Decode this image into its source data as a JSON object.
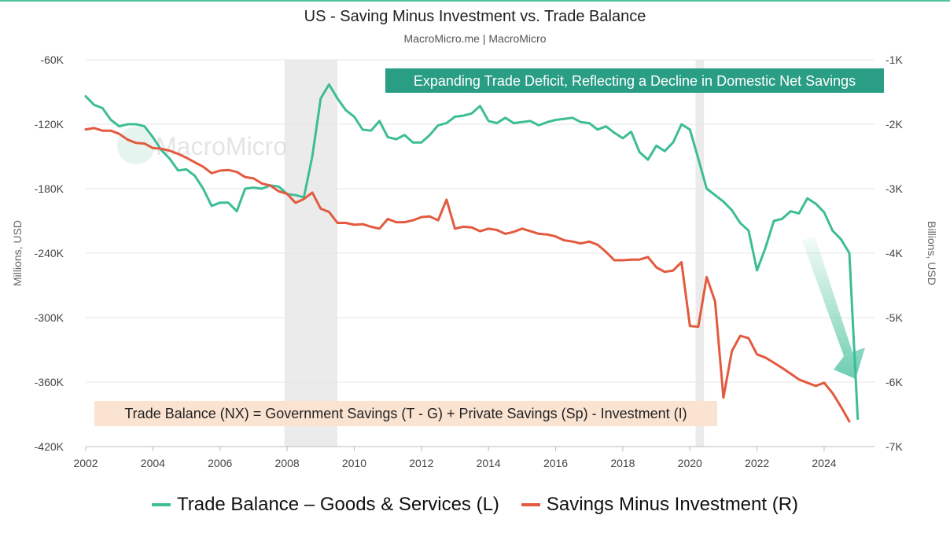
{
  "title": "US - Saving Minus Investment vs. Trade Balance",
  "subtitle": "MacroMicro.me | MacroMicro",
  "watermark": "MacroMicro",
  "colors": {
    "trade": "#3dbd96",
    "savings": "#e35a3f",
    "shade": "#ebebeb",
    "note_top_bg": "#2a9d85",
    "note_bottom_bg": "#fbe3d2"
  },
  "chart_data": {
    "type": "line",
    "x_ticks": [
      "2002",
      "2004",
      "2006",
      "2008",
      "2010",
      "2012",
      "2014",
      "2016",
      "2018",
      "2020",
      "2022",
      "2024"
    ],
    "ylabel_left": "Millions, USD",
    "ylabel_right": "Billions, USD",
    "ylim_left": [
      -420000,
      -60000
    ],
    "ylim_right": [
      -7000,
      -1000
    ],
    "left_ticks": [
      "-60K",
      "-120K",
      "-180K",
      "-240K",
      "-300K",
      "-360K",
      "-420K"
    ],
    "right_ticks": [
      "-1K",
      "-2K",
      "-3K",
      "-4K",
      "-5K",
      "-6K",
      "-7K"
    ],
    "grid": true,
    "recession_shading": [
      [
        2007.92,
        2009.5
      ],
      [
        2020.17,
        2020.42
      ]
    ],
    "legend_position": "bottom",
    "annotations": [
      {
        "text": "Expanding Trade Deficit, Reflecting a Decline in Domestic Net Savings",
        "position": "top-right"
      },
      {
        "text": "Trade Balance (NX) = Government Savings (T - G) + Private Savings (Sp) - Investment (I)",
        "position": "bottom-left"
      }
    ],
    "series": [
      {
        "name": "Trade Balance – Goods & Services (L)",
        "axis": "left",
        "x": [
          2002.0,
          2002.25,
          2002.5,
          2002.75,
          2003.0,
          2003.25,
          2003.5,
          2003.75,
          2004.0,
          2004.25,
          2004.5,
          2004.75,
          2005.0,
          2005.25,
          2005.5,
          2005.75,
          2006.0,
          2006.25,
          2006.5,
          2006.75,
          2007.0,
          2007.25,
          2007.5,
          2007.75,
          2008.0,
          2008.25,
          2008.5,
          2008.75,
          2009.0,
          2009.25,
          2009.5,
          2009.75,
          2010.0,
          2010.25,
          2010.5,
          2010.75,
          2011.0,
          2011.25,
          2011.5,
          2011.75,
          2012.0,
          2012.25,
          2012.5,
          2012.75,
          2013.0,
          2013.25,
          2013.5,
          2013.75,
          2014.0,
          2014.25,
          2014.5,
          2014.75,
          2015.0,
          2015.25,
          2015.5,
          2015.75,
          2016.0,
          2016.25,
          2016.5,
          2016.75,
          2017.0,
          2017.25,
          2017.5,
          2017.75,
          2018.0,
          2018.25,
          2018.5,
          2018.75,
          2019.0,
          2019.25,
          2019.5,
          2019.75,
          2020.0,
          2020.25,
          2020.5,
          2020.75,
          2021.0,
          2021.25,
          2021.5,
          2021.75,
          2022.0,
          2022.25,
          2022.5,
          2022.75,
          2023.0,
          2023.25,
          2023.5,
          2023.75,
          2024.0,
          2024.25,
          2024.5,
          2024.75,
          2025.0
        ],
        "values": [
          -94000,
          -102000,
          -105000,
          -116000,
          -122000,
          -120000,
          -120000,
          -122000,
          -132000,
          -144000,
          -152000,
          -163000,
          -162000,
          -168000,
          -180000,
          -196000,
          -193000,
          -193000,
          -201000,
          -180000,
          -179000,
          -180000,
          -177000,
          -178000,
          -185000,
          -186000,
          -188000,
          -150000,
          -96000,
          -83000,
          -96000,
          -107000,
          -113000,
          -125000,
          -126000,
          -117000,
          -132000,
          -134000,
          -130000,
          -137000,
          -137000,
          -130000,
          -121000,
          -119000,
          -113000,
          -112000,
          -110000,
          -103000,
          -117000,
          -119000,
          -114000,
          -119000,
          -118000,
          -117000,
          -121000,
          -118000,
          -116000,
          -115000,
          -114000,
          -118000,
          -119000,
          -125000,
          -122000,
          -128000,
          -133000,
          -127000,
          -146000,
          -153000,
          -140000,
          -145000,
          -137000,
          -120000,
          -125000,
          -152000,
          -180000,
          -186000,
          -192000,
          -200000,
          -212000,
          -219000,
          -256000,
          -235000,
          -210000,
          -208000,
          -201000,
          -203000,
          -189000,
          -194000,
          -202000,
          -219000,
          -227000,
          -240000,
          -394000
        ]
      },
      {
        "name": "Savings Minus Investment (R)",
        "axis": "right",
        "x": [
          2002.0,
          2002.25,
          2002.5,
          2002.75,
          2003.0,
          2003.25,
          2003.5,
          2003.75,
          2004.0,
          2004.25,
          2004.5,
          2004.75,
          2005.0,
          2005.25,
          2005.5,
          2005.75,
          2006.0,
          2006.25,
          2006.5,
          2006.75,
          2007.0,
          2007.25,
          2007.5,
          2007.75,
          2008.0,
          2008.25,
          2008.5,
          2008.75,
          2009.0,
          2009.25,
          2009.5,
          2009.75,
          2010.0,
          2010.25,
          2010.5,
          2010.75,
          2011.0,
          2011.25,
          2011.5,
          2011.75,
          2012.0,
          2012.25,
          2012.5,
          2012.75,
          2013.0,
          2013.25,
          2013.5,
          2013.75,
          2014.0,
          2014.25,
          2014.5,
          2014.75,
          2015.0,
          2015.25,
          2015.5,
          2015.75,
          2016.0,
          2016.25,
          2016.5,
          2016.75,
          2017.0,
          2017.25,
          2017.5,
          2017.75,
          2018.0,
          2018.25,
          2018.5,
          2018.75,
          2019.0,
          2019.25,
          2019.5,
          2019.75,
          2020.0,
          2020.25,
          2020.5,
          2020.75,
          2021.0,
          2021.25,
          2021.5,
          2021.75,
          2022.0,
          2022.25,
          2022.5,
          2022.75,
          2023.0,
          2023.25,
          2023.5,
          2023.75,
          2024.0,
          2024.25,
          2024.5,
          2024.75
        ],
        "values": [
          -2080,
          -2060,
          -2100,
          -2100,
          -2150,
          -2240,
          -2290,
          -2300,
          -2370,
          -2380,
          -2410,
          -2460,
          -2520,
          -2590,
          -2660,
          -2760,
          -2720,
          -2710,
          -2740,
          -2820,
          -2840,
          -2920,
          -2950,
          -3040,
          -3080,
          -3220,
          -3160,
          -3060,
          -3310,
          -3360,
          -3530,
          -3530,
          -3560,
          -3550,
          -3590,
          -3620,
          -3470,
          -3520,
          -3520,
          -3490,
          -3440,
          -3430,
          -3490,
          -3170,
          -3620,
          -3590,
          -3600,
          -3660,
          -3620,
          -3640,
          -3700,
          -3670,
          -3620,
          -3660,
          -3700,
          -3710,
          -3740,
          -3800,
          -3820,
          -3850,
          -3820,
          -3870,
          -3980,
          -4110,
          -4110,
          -4100,
          -4100,
          -4060,
          -4220,
          -4290,
          -4270,
          -4140,
          -5130,
          -5140,
          -4370,
          -4750,
          -6240,
          -5520,
          -5280,
          -5320,
          -5570,
          -5620,
          -5700,
          -5780,
          -5870,
          -5960,
          -6010,
          -6060,
          -6010,
          -6170,
          -6380,
          -6610
        ]
      }
    ]
  }
}
